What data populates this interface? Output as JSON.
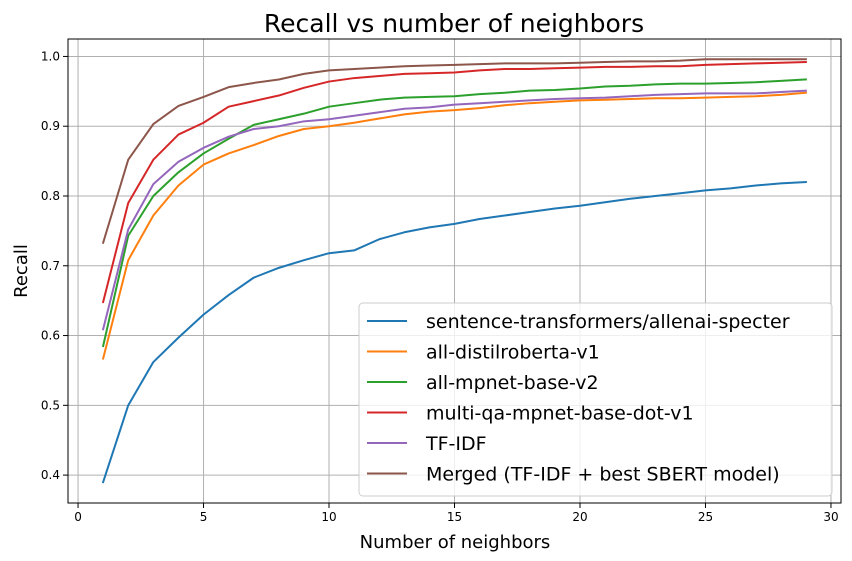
{
  "chart_data": {
    "type": "line",
    "title": "Recall vs number of neighbors",
    "xlabel": "Number of neighbors",
    "ylabel": "Recall",
    "xlim": [
      -0.4,
      30.4
    ],
    "ylim": [
      0.36,
      1.025
    ],
    "xticks": [
      0,
      5,
      10,
      15,
      20,
      25,
      30
    ],
    "xtick_labels": [
      "0",
      "5",
      "10",
      "15",
      "20",
      "25",
      "30"
    ],
    "yticks": [
      0.4,
      0.5,
      0.6,
      0.7,
      0.8,
      0.9,
      1.0
    ],
    "ytick_labels": [
      "0.4",
      "0.5",
      "0.6",
      "0.7",
      "0.8",
      "0.9",
      "1.0"
    ],
    "grid": true,
    "legend_position": "lower-right",
    "x": [
      1,
      2,
      3,
      4,
      5,
      6,
      7,
      8,
      9,
      10,
      11,
      12,
      13,
      14,
      15,
      16,
      17,
      18,
      19,
      20,
      21,
      22,
      23,
      24,
      25,
      26,
      27,
      28,
      29
    ],
    "series": [
      {
        "name": "sentence-transformers/allenai-specter",
        "color": "#1f77b4",
        "values": [
          0.39,
          0.5,
          0.562,
          0.597,
          0.63,
          0.658,
          0.683,
          0.697,
          0.708,
          0.718,
          0.722,
          0.738,
          0.748,
          0.755,
          0.76,
          0.767,
          0.772,
          0.777,
          0.782,
          0.786,
          0.791,
          0.796,
          0.8,
          0.804,
          0.808,
          0.811,
          0.815,
          0.818,
          0.82
        ]
      },
      {
        "name": "all-distilroberta-v1",
        "color": "#ff7f0e",
        "values": [
          0.567,
          0.708,
          0.772,
          0.815,
          0.845,
          0.861,
          0.873,
          0.886,
          0.896,
          0.9,
          0.905,
          0.911,
          0.917,
          0.921,
          0.923,
          0.926,
          0.93,
          0.933,
          0.935,
          0.937,
          0.938,
          0.939,
          0.94,
          0.94,
          0.941,
          0.942,
          0.943,
          0.945,
          0.948
        ]
      },
      {
        "name": "all-mpnet-base-v2",
        "color": "#2ca02c",
        "values": [
          0.585,
          0.743,
          0.8,
          0.834,
          0.861,
          0.882,
          0.902,
          0.91,
          0.918,
          0.928,
          0.933,
          0.938,
          0.941,
          0.942,
          0.943,
          0.946,
          0.948,
          0.951,
          0.952,
          0.954,
          0.957,
          0.958,
          0.96,
          0.961,
          0.961,
          0.962,
          0.963,
          0.965,
          0.967
        ]
      },
      {
        "name": "multi-qa-mpnet-base-dot-v1",
        "color": "#d62728",
        "values": [
          0.648,
          0.79,
          0.852,
          0.888,
          0.905,
          0.928,
          0.936,
          0.944,
          0.955,
          0.964,
          0.969,
          0.972,
          0.975,
          0.976,
          0.977,
          0.98,
          0.982,
          0.982,
          0.983,
          0.984,
          0.985,
          0.985,
          0.986,
          0.986,
          0.988,
          0.989,
          0.99,
          0.991,
          0.992
        ]
      },
      {
        "name": "TF-IDF",
        "color": "#9467bd",
        "values": [
          0.609,
          0.752,
          0.817,
          0.849,
          0.869,
          0.885,
          0.896,
          0.9,
          0.907,
          0.91,
          0.915,
          0.92,
          0.925,
          0.927,
          0.931,
          0.933,
          0.935,
          0.937,
          0.939,
          0.94,
          0.941,
          0.943,
          0.945,
          0.946,
          0.947,
          0.947,
          0.947,
          0.949,
          0.951
        ]
      },
      {
        "name": "Merged (TF-IDF + best SBERT model)",
        "color": "#8c564b",
        "values": [
          0.733,
          0.852,
          0.903,
          0.929,
          0.942,
          0.956,
          0.962,
          0.967,
          0.975,
          0.98,
          0.982,
          0.984,
          0.986,
          0.987,
          0.988,
          0.989,
          0.99,
          0.99,
          0.99,
          0.991,
          0.992,
          0.993,
          0.993,
          0.994,
          0.996,
          0.996,
          0.996,
          0.996,
          0.996
        ]
      }
    ]
  }
}
